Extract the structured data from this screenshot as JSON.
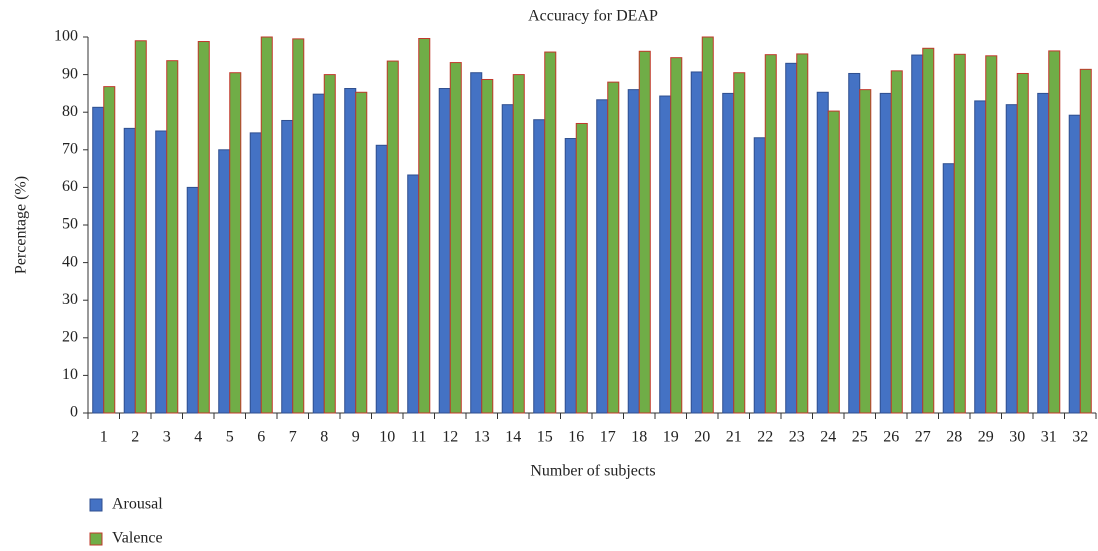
{
  "chart_data": {
    "type": "bar",
    "title": "Accuracy for DEAP",
    "x_label": "Number of subjects",
    "y_label": "Percentage (%)",
    "categories": [
      "1",
      "2",
      "3",
      "4",
      "5",
      "6",
      "7",
      "8",
      "9",
      "10",
      "11",
      "12",
      "13",
      "14",
      "15",
      "16",
      "17",
      "18",
      "19",
      "20",
      "21",
      "22",
      "23",
      "24",
      "25",
      "26",
      "27",
      "28",
      "29",
      "30",
      "31",
      "32"
    ],
    "series": [
      {
        "name": "Arousal",
        "color": "#4472c4",
        "edge": "#2f4f8f",
        "values": [
          81.3,
          75.7,
          75,
          60,
          70,
          74.5,
          77.8,
          84.8,
          86.3,
          71.2,
          63.3,
          86.3,
          90.5,
          82,
          78,
          73,
          83.3,
          86,
          84.3,
          90.7,
          85,
          73.2,
          93,
          85.3,
          90.3,
          85,
          95.2,
          66.3,
          83,
          82,
          85,
          79.2
        ]
      },
      {
        "name": "Valence",
        "color": "#70ad47",
        "edge": "#c0392b",
        "values": [
          86.8,
          99,
          93.7,
          98.8,
          90.5,
          100,
          99.5,
          90,
          85.3,
          93.6,
          99.6,
          93.2,
          88.7,
          90,
          96,
          77,
          88,
          96.2,
          94.5,
          100,
          90.5,
          95.3,
          95.5,
          80.3,
          86,
          91,
          97,
          95.4,
          95,
          90.3,
          96.3,
          91.4
        ]
      }
    ],
    "ylim": [
      0,
      100
    ],
    "yticks": [
      0,
      10,
      20,
      30,
      40,
      50,
      60,
      70,
      80,
      90,
      100
    ],
    "grid": false,
    "legend": "bottom-left"
  }
}
